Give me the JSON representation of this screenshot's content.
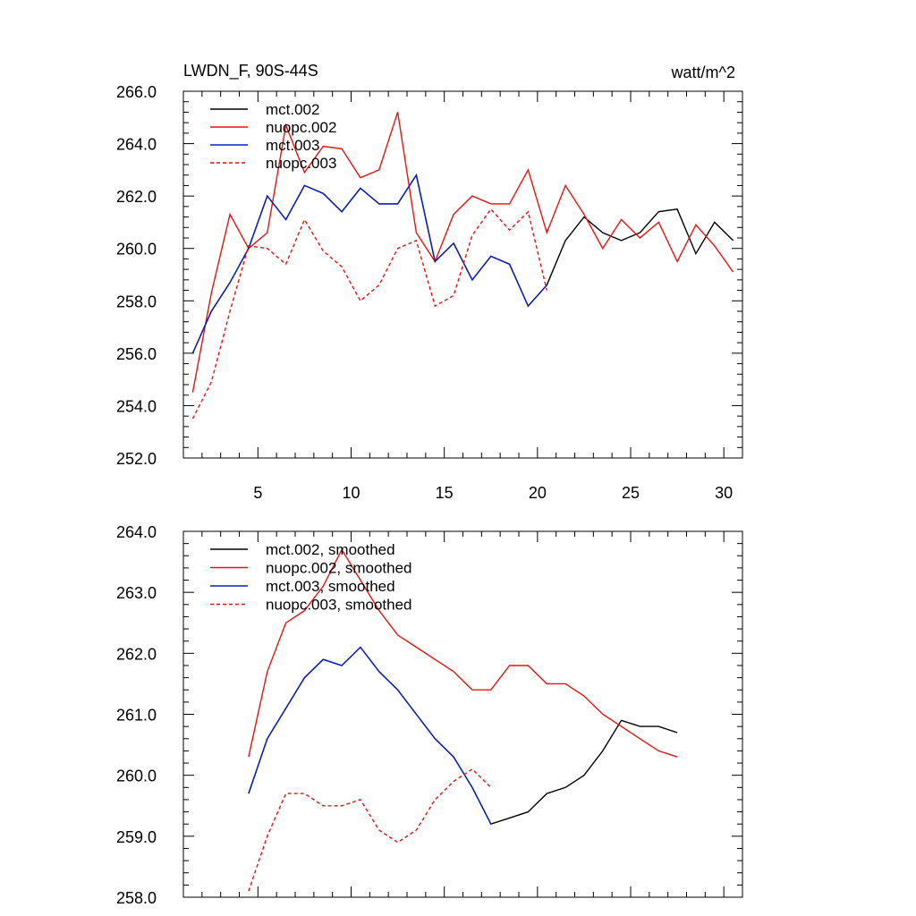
{
  "chart_data": [
    {
      "type": "line",
      "title": "LWDN_F, 90S-44S",
      "units": "watt/m^2",
      "xlabel": "",
      "ylabel": "",
      "xlim": [
        1,
        31
      ],
      "ylim": [
        252,
        266
      ],
      "xticks": [
        5,
        10,
        15,
        20,
        25,
        30
      ],
      "xtick_labels": [
        "5",
        "10",
        "15",
        "20",
        "25",
        "30"
      ],
      "yticks": [
        252,
        254,
        256,
        258,
        260,
        262,
        264,
        266
      ],
      "ytick_labels": [
        "252.0",
        "254.0",
        "256.0",
        "258.0",
        "260.0",
        "262.0",
        "264.0",
        "266.0"
      ],
      "legend_position": "top-left",
      "grid": false,
      "series": [
        {
          "name": "mct.002",
          "color": "#000000",
          "dash": "solid",
          "x": [
            1.5,
            2.5,
            3.5,
            4.5,
            5.5,
            6.5,
            7.5,
            8.5,
            9.5,
            10.5,
            11.5,
            12.5,
            13.5,
            14.5,
            15.5,
            16.5,
            17.5,
            18.5,
            19.5,
            20.5,
            21.5,
            22.5,
            23.5,
            24.5,
            25.5,
            26.5,
            27.5,
            28.5,
            29.5,
            30.5
          ],
          "y": [
            256.0,
            257.6,
            258.7,
            260.0,
            262.0,
            261.1,
            262.4,
            262.1,
            261.4,
            262.3,
            261.7,
            261.7,
            262.8,
            259.5,
            260.2,
            258.8,
            259.7,
            259.4,
            257.8,
            258.6,
            260.3,
            261.2,
            260.6,
            260.3,
            260.6,
            261.4,
            261.5,
            259.8,
            261.0,
            260.3
          ]
        },
        {
          "name": "nuopc.002",
          "color": "#e8130f",
          "dash": "solid",
          "x": [
            1.5,
            2.5,
            3.5,
            4.5,
            5.5,
            6.5,
            7.5,
            8.5,
            9.5,
            10.5,
            11.5,
            12.5,
            13.5,
            14.5,
            15.5,
            16.5,
            17.5,
            18.5,
            19.5,
            20.5,
            21.5,
            22.5,
            23.5,
            24.5,
            25.5,
            26.5,
            27.5,
            28.5,
            29.5,
            30.5
          ],
          "y": [
            254.5,
            258.3,
            261.3,
            260.0,
            260.6,
            264.7,
            262.9,
            263.9,
            263.8,
            262.7,
            263.0,
            265.2,
            260.6,
            259.5,
            261.3,
            262.0,
            261.7,
            261.7,
            263.0,
            260.6,
            262.4,
            261.3,
            260.0,
            261.1,
            260.4,
            261.0,
            259.5,
            260.9,
            260.1,
            259.1
          ]
        },
        {
          "name": "mct.003",
          "color": "#0a1ec8",
          "dash": "solid",
          "x": [
            1.5,
            2.5,
            3.5,
            4.5,
            5.5,
            6.5,
            7.5,
            8.5,
            9.5,
            10.5,
            11.5,
            12.5,
            13.5,
            14.5,
            15.5,
            16.5,
            17.5,
            18.5,
            19.5,
            20.5
          ],
          "y": [
            256.0,
            257.6,
            258.7,
            260.0,
            262.0,
            261.1,
            262.4,
            262.1,
            261.4,
            262.3,
            261.7,
            261.7,
            262.8,
            259.5,
            260.2,
            258.8,
            259.7,
            259.4,
            257.8,
            258.6
          ]
        },
        {
          "name": "nuopc.003",
          "color": "#e8130f",
          "dash": "dashed",
          "x": [
            1.5,
            2.5,
            3.5,
            4.5,
            5.5,
            6.5,
            7.5,
            8.5,
            9.5,
            10.5,
            11.5,
            12.5,
            13.5,
            14.5,
            15.5,
            16.5,
            17.5,
            18.5,
            19.5,
            20.5
          ],
          "y": [
            253.5,
            254.9,
            257.6,
            260.1,
            260.0,
            259.4,
            261.1,
            259.9,
            259.3,
            258.0,
            258.6,
            260.0,
            260.3,
            257.8,
            258.2,
            260.5,
            261.5,
            260.7,
            261.4,
            258.4
          ]
        }
      ]
    },
    {
      "type": "line",
      "title": "",
      "xlabel": "",
      "ylabel": "",
      "xlim": [
        1,
        31
      ],
      "ylim": [
        258,
        264
      ],
      "xticks": [
        5,
        10,
        15,
        20,
        25,
        30
      ],
      "yticks": [
        258,
        259,
        260,
        261,
        262,
        263,
        264
      ],
      "ytick_labels": [
        "258.0",
        "259.0",
        "260.0",
        "261.0",
        "262.0",
        "263.0",
        "264.0"
      ],
      "legend_position": "top-left",
      "grid": false,
      "series": [
        {
          "name": "mct.002, smoothed",
          "color": "#000000",
          "dash": "solid",
          "x": [
            4.5,
            5.5,
            6.5,
            7.5,
            8.5,
            9.5,
            10.5,
            11.5,
            12.5,
            13.5,
            14.5,
            15.5,
            16.5,
            17.5,
            18.5,
            19.5,
            20.5,
            21.5,
            22.5,
            23.5,
            24.5,
            25.5,
            26.5,
            27.5
          ],
          "y": [
            259.7,
            260.6,
            261.1,
            261.6,
            261.9,
            261.8,
            262.1,
            261.7,
            261.4,
            261.0,
            260.6,
            260.3,
            259.8,
            259.2,
            259.3,
            259.4,
            259.7,
            259.8,
            260.0,
            260.4,
            260.9,
            260.8,
            260.8,
            260.7
          ]
        },
        {
          "name": "nuopc.002, smoothed",
          "color": "#e8130f",
          "dash": "solid",
          "x": [
            4.5,
            5.5,
            6.5,
            7.5,
            8.5,
            9.5,
            10.5,
            11.5,
            12.5,
            13.5,
            14.5,
            15.5,
            16.5,
            17.5,
            18.5,
            19.5,
            20.5,
            21.5,
            22.5,
            23.5,
            24.5,
            25.5,
            26.5,
            27.5
          ],
          "y": [
            260.3,
            261.7,
            262.5,
            262.7,
            263.1,
            263.7,
            263.2,
            262.7,
            262.3,
            262.1,
            261.9,
            261.7,
            261.4,
            261.4,
            261.8,
            261.8,
            261.5,
            261.5,
            261.3,
            261.0,
            260.8,
            260.6,
            260.4,
            260.3
          ]
        },
        {
          "name": "mct.003, smoothed",
          "color": "#0a1ec8",
          "dash": "solid",
          "x": [
            4.5,
            5.5,
            6.5,
            7.5,
            8.5,
            9.5,
            10.5,
            11.5,
            12.5,
            13.5,
            14.5,
            15.5,
            16.5,
            17.5
          ],
          "y": [
            259.7,
            260.6,
            261.1,
            261.6,
            261.9,
            261.8,
            262.1,
            261.7,
            261.4,
            261.0,
            260.6,
            260.3,
            259.8,
            259.2
          ]
        },
        {
          "name": "nuopc.003, smoothed",
          "color": "#e8130f",
          "dash": "dashed",
          "x": [
            4.5,
            5.5,
            6.5,
            7.5,
            8.5,
            9.5,
            10.5,
            11.5,
            12.5,
            13.5,
            14.5,
            15.5,
            16.5,
            17.5
          ],
          "y": [
            258.1,
            259.0,
            259.7,
            259.7,
            259.5,
            259.5,
            259.6,
            259.1,
            258.9,
            259.1,
            259.6,
            259.9,
            260.1,
            259.8
          ]
        }
      ]
    }
  ]
}
